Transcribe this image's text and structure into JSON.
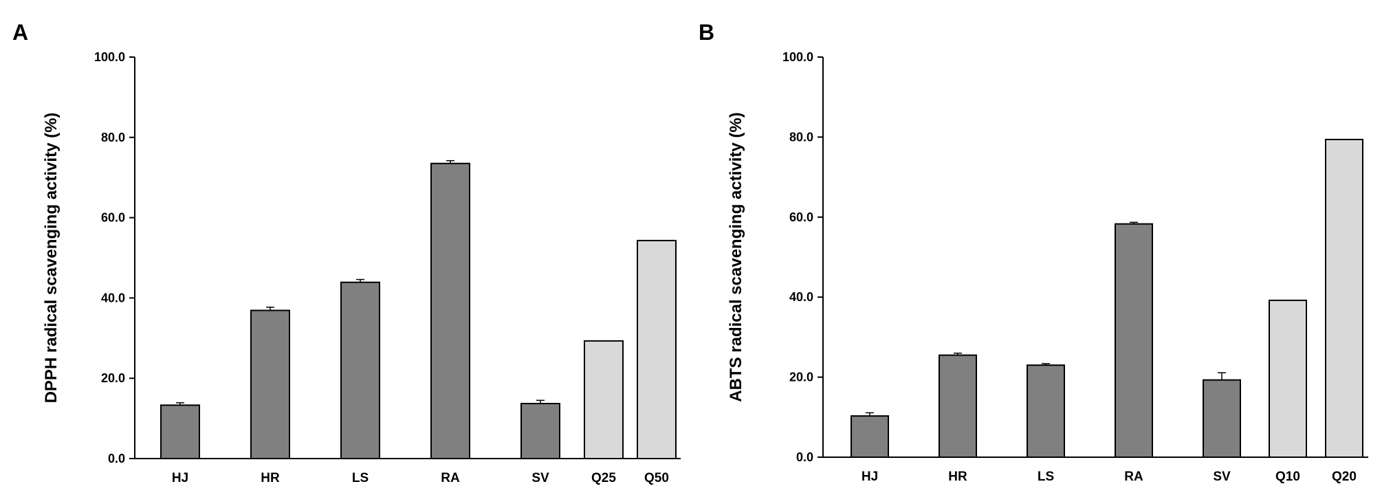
{
  "chart_data": [
    {
      "panel_label": "A",
      "type": "bar",
      "ylabel": "DPPH radical scavenging activity (%)",
      "ylim": [
        0,
        100
      ],
      "yticks": [
        "0.0",
        "20.0",
        "40.0",
        "60.0",
        "80.0",
        "100.0"
      ],
      "categories": [
        "HJ",
        "HR",
        "LS",
        "RA",
        "SV",
        "Q25",
        "Q50"
      ],
      "values": [
        13.3,
        36.9,
        43.9,
        73.5,
        13.7,
        29.3,
        54.3
      ],
      "errors": [
        0.6,
        0.8,
        0.7,
        0.7,
        0.8,
        0,
        0
      ],
      "bar_colors": [
        "#808080",
        "#808080",
        "#808080",
        "#808080",
        "#808080",
        "#d9d9d9",
        "#d9d9d9"
      ],
      "grid": false
    },
    {
      "panel_label": "B",
      "type": "bar",
      "ylabel": "ABTS radical scavenging activity (%)",
      "ylim": [
        0,
        100
      ],
      "yticks": [
        "0.0",
        "20.0",
        "40.0",
        "60.0",
        "80.0",
        "100.0"
      ],
      "categories": [
        "HJ",
        "HR",
        "LS",
        "RA",
        "SV",
        "Q10",
        "Q20"
      ],
      "values": [
        10.3,
        25.5,
        23.0,
        58.3,
        19.3,
        39.2,
        79.4
      ],
      "errors": [
        0.8,
        0.5,
        0.4,
        0.4,
        1.8,
        0,
        0
      ],
      "bar_colors": [
        "#808080",
        "#808080",
        "#808080",
        "#808080",
        "#808080",
        "#d9d9d9",
        "#d9d9d9"
      ],
      "grid": false
    }
  ]
}
